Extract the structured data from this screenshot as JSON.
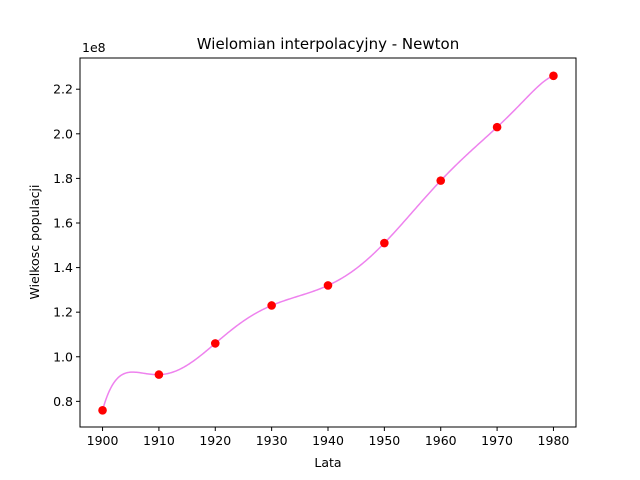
{
  "chart_data": {
    "type": "line",
    "title": "Wielomian interpolacyjny - Newton",
    "xlabel": "Lata",
    "ylabel": "Wielkosc populacji",
    "y_multiplier_label": "1e8",
    "xlim": [
      1896,
      1984
    ],
    "ylim": [
      0.685,
      2.34
    ],
    "x_ticks": [
      1900,
      1910,
      1920,
      1930,
      1940,
      1950,
      1960,
      1970,
      1980
    ],
    "y_ticks": [
      0.8,
      1.0,
      1.2,
      1.4,
      1.6,
      1.8,
      2.0,
      2.2
    ],
    "y_tick_labels": [
      "0.8",
      "1.0",
      "1.2",
      "1.4",
      "1.6",
      "1.8",
      "2.0",
      "2.2"
    ],
    "grid": false,
    "series": [
      {
        "kind": "interpolating-curve",
        "color": "#ee82ee",
        "x": [
          1900,
          1910,
          1920,
          1930,
          1940,
          1950,
          1960,
          1970,
          1980
        ],
        "y": [
          0.76,
          0.92,
          1.06,
          1.23,
          1.32,
          1.51,
          1.79,
          2.03,
          2.26
        ]
      },
      {
        "kind": "points",
        "color": "#ff0000",
        "x": [
          1900,
          1910,
          1920,
          1930,
          1940,
          1950,
          1960,
          1970,
          1980
        ],
        "y": [
          0.76,
          0.92,
          1.06,
          1.23,
          1.32,
          1.51,
          1.79,
          2.03,
          2.26
        ]
      }
    ]
  }
}
